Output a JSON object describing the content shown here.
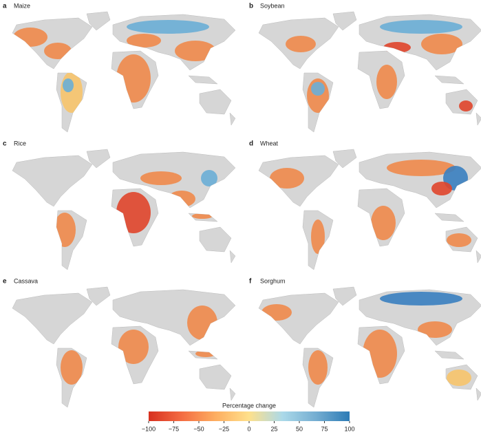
{
  "panels": [
    {
      "label": "a",
      "title": "Maize"
    },
    {
      "label": "b",
      "title": "Soybean"
    },
    {
      "label": "c",
      "title": "Rice"
    },
    {
      "label": "d",
      "title": "Wheat"
    },
    {
      "label": "e",
      "title": "Cassava"
    },
    {
      "label": "f",
      "title": "Sorghum"
    }
  ],
  "colorbar": {
    "title": "Percentage change",
    "lim": [
      -100,
      100
    ],
    "colors": [
      "#d7301f",
      "#f46d43",
      "#fdae61",
      "#fee08b",
      "#abd9e9",
      "#74add1",
      "#2c7bb6"
    ],
    "ticks": [
      {
        "value": -100,
        "label": "−100"
      },
      {
        "value": -75,
        "label": "−75"
      },
      {
        "value": -50,
        "label": "−50"
      },
      {
        "value": -25,
        "label": "−25"
      },
      0,
      25,
      50,
      75,
      100
    ]
  }
}
